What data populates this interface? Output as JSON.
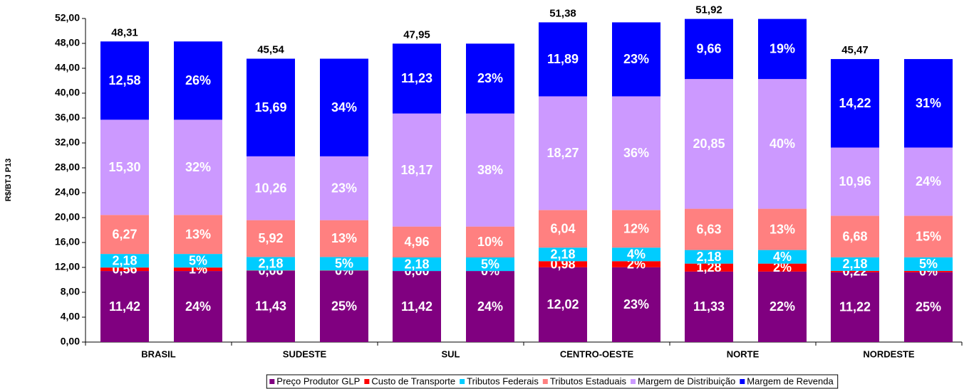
{
  "chart_data": {
    "type": "stacked-bar-pair",
    "y_label": "R$/BTJ P13",
    "categories": [
      "BRASIL",
      "SUDESTE",
      "SUL",
      "CENTRO-OESTE",
      "NORTE",
      "NORDESTE"
    ],
    "ylim": [
      0,
      52
    ],
    "yticks": [
      {
        "value": 0,
        "label": "0,00"
      },
      {
        "value": 4,
        "label": "4,00"
      },
      {
        "value": 8,
        "label": "8,00"
      },
      {
        "value": 12,
        "label": "12,00"
      },
      {
        "value": 16,
        "label": "16,00"
      },
      {
        "value": 20,
        "label": "20,00"
      },
      {
        "value": 24,
        "label": "24,00"
      },
      {
        "value": 28,
        "label": "28,00"
      },
      {
        "value": 32,
        "label": "32,00"
      },
      {
        "value": 36,
        "label": "36,00"
      },
      {
        "value": 40,
        "label": "40,00"
      },
      {
        "value": 44,
        "label": "44,00"
      },
      {
        "value": 48,
        "label": "48,00"
      },
      {
        "value": 52,
        "label": "52,00"
      }
    ],
    "totals": [
      48.31,
      45.54,
      47.95,
      51.38,
      51.92,
      45.47
    ],
    "total_labels": [
      "48,31",
      "45,54",
      "47,95",
      "51,38",
      "51,92",
      "45,47"
    ],
    "series": [
      {
        "name": "Preço Produtor GLP",
        "color": "#800080",
        "values": [
          11.42,
          11.43,
          11.42,
          12.02,
          11.33,
          11.22
        ],
        "value_labels": [
          "11,42",
          "11,43",
          "11,42",
          "12,02",
          "11,33",
          "11,22"
        ],
        "shares": [
          24,
          25,
          24,
          23,
          22,
          25
        ],
        "share_labels": [
          "24%",
          "25%",
          "24%",
          "23%",
          "22%",
          "25%"
        ]
      },
      {
        "name": "Custo de Transporte",
        "color": "#ff0000",
        "values": [
          0.56,
          0.06,
          0.0,
          0.98,
          1.28,
          0.22
        ],
        "value_labels": [
          "0,56",
          "0,06",
          "0,00",
          "0,98",
          "1,28",
          "0,22"
        ],
        "shares": [
          1,
          0,
          0,
          2,
          2,
          0
        ],
        "share_labels": [
          "1%",
          "0%",
          "0%",
          "2%",
          "2%",
          "0%"
        ]
      },
      {
        "name": "Tributos Federais",
        "color": "#00ccff",
        "values": [
          2.18,
          2.18,
          2.18,
          2.18,
          2.18,
          2.18
        ],
        "value_labels": [
          "2,18",
          "2,18",
          "2,18",
          "2,18",
          "2,18",
          "2,18"
        ],
        "shares": [
          5,
          5,
          5,
          4,
          4,
          5
        ],
        "share_labels": [
          "5%",
          "5%",
          "5%",
          "4%",
          "4%",
          "5%"
        ]
      },
      {
        "name": "Tributos Estaduais",
        "color": "#ff8080",
        "values": [
          6.27,
          5.92,
          4.96,
          6.04,
          6.63,
          6.68
        ],
        "value_labels": [
          "6,27",
          "5,92",
          "4,96",
          "6,04",
          "6,63",
          "6,68"
        ],
        "shares": [
          13,
          13,
          10,
          12,
          13,
          15
        ],
        "share_labels": [
          "13%",
          "13%",
          "10%",
          "12%",
          "13%",
          "15%"
        ]
      },
      {
        "name": "Margem de Distribuição",
        "color": "#cc99ff",
        "values": [
          15.3,
          10.26,
          18.17,
          18.27,
          20.85,
          10.96
        ],
        "value_labels": [
          "15,30",
          "10,26",
          "18,17",
          "18,27",
          "20,85",
          "10,96"
        ],
        "shares": [
          32,
          23,
          38,
          36,
          40,
          24
        ],
        "share_labels": [
          "32%",
          "23%",
          "38%",
          "36%",
          "40%",
          "24%"
        ]
      },
      {
        "name": "Margem de Revenda",
        "color": "#0000ff",
        "values": [
          12.58,
          15.69,
          11.23,
          11.89,
          9.66,
          14.22
        ],
        "value_labels": [
          "12,58",
          "15,69",
          "11,23",
          "11,89",
          "9,66",
          "14,22"
        ],
        "shares": [
          26,
          34,
          23,
          23,
          19,
          31
        ],
        "share_labels": [
          "26%",
          "34%",
          "23%",
          "23%",
          "19%",
          "31%"
        ]
      }
    ]
  }
}
